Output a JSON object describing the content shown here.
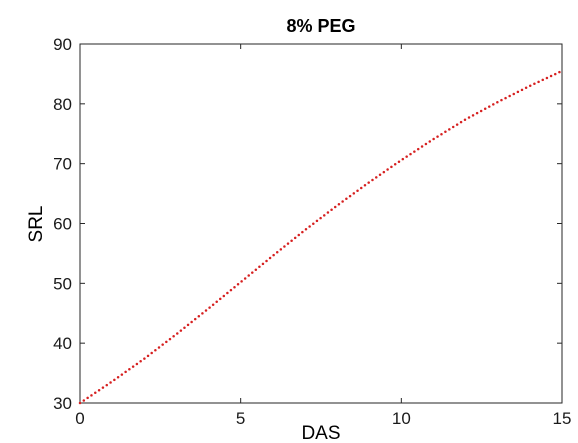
{
  "chart_data": {
    "type": "scatter",
    "title": "8% PEG",
    "xlabel": "DAS",
    "ylabel": "SRL",
    "xlim": [
      0,
      15
    ],
    "ylim": [
      30,
      90
    ],
    "xticks": [
      0,
      5,
      10,
      15
    ],
    "yticks": [
      30,
      40,
      50,
      60,
      70,
      80,
      90
    ],
    "grid": false,
    "legend": "none",
    "marker_color": "#d62020",
    "series": [
      {
        "x": [
          0,
          1,
          2,
          3,
          4,
          5,
          6,
          7,
          8,
          9,
          10,
          11,
          12,
          13,
          14,
          15
        ],
        "values": [
          30,
          33.6,
          37.4,
          41.5,
          45.8,
          50.2,
          54.6,
          58.9,
          63.0,
          66.9,
          70.6,
          74.1,
          77.4,
          80.3,
          83.0,
          85.5
        ]
      }
    ]
  }
}
